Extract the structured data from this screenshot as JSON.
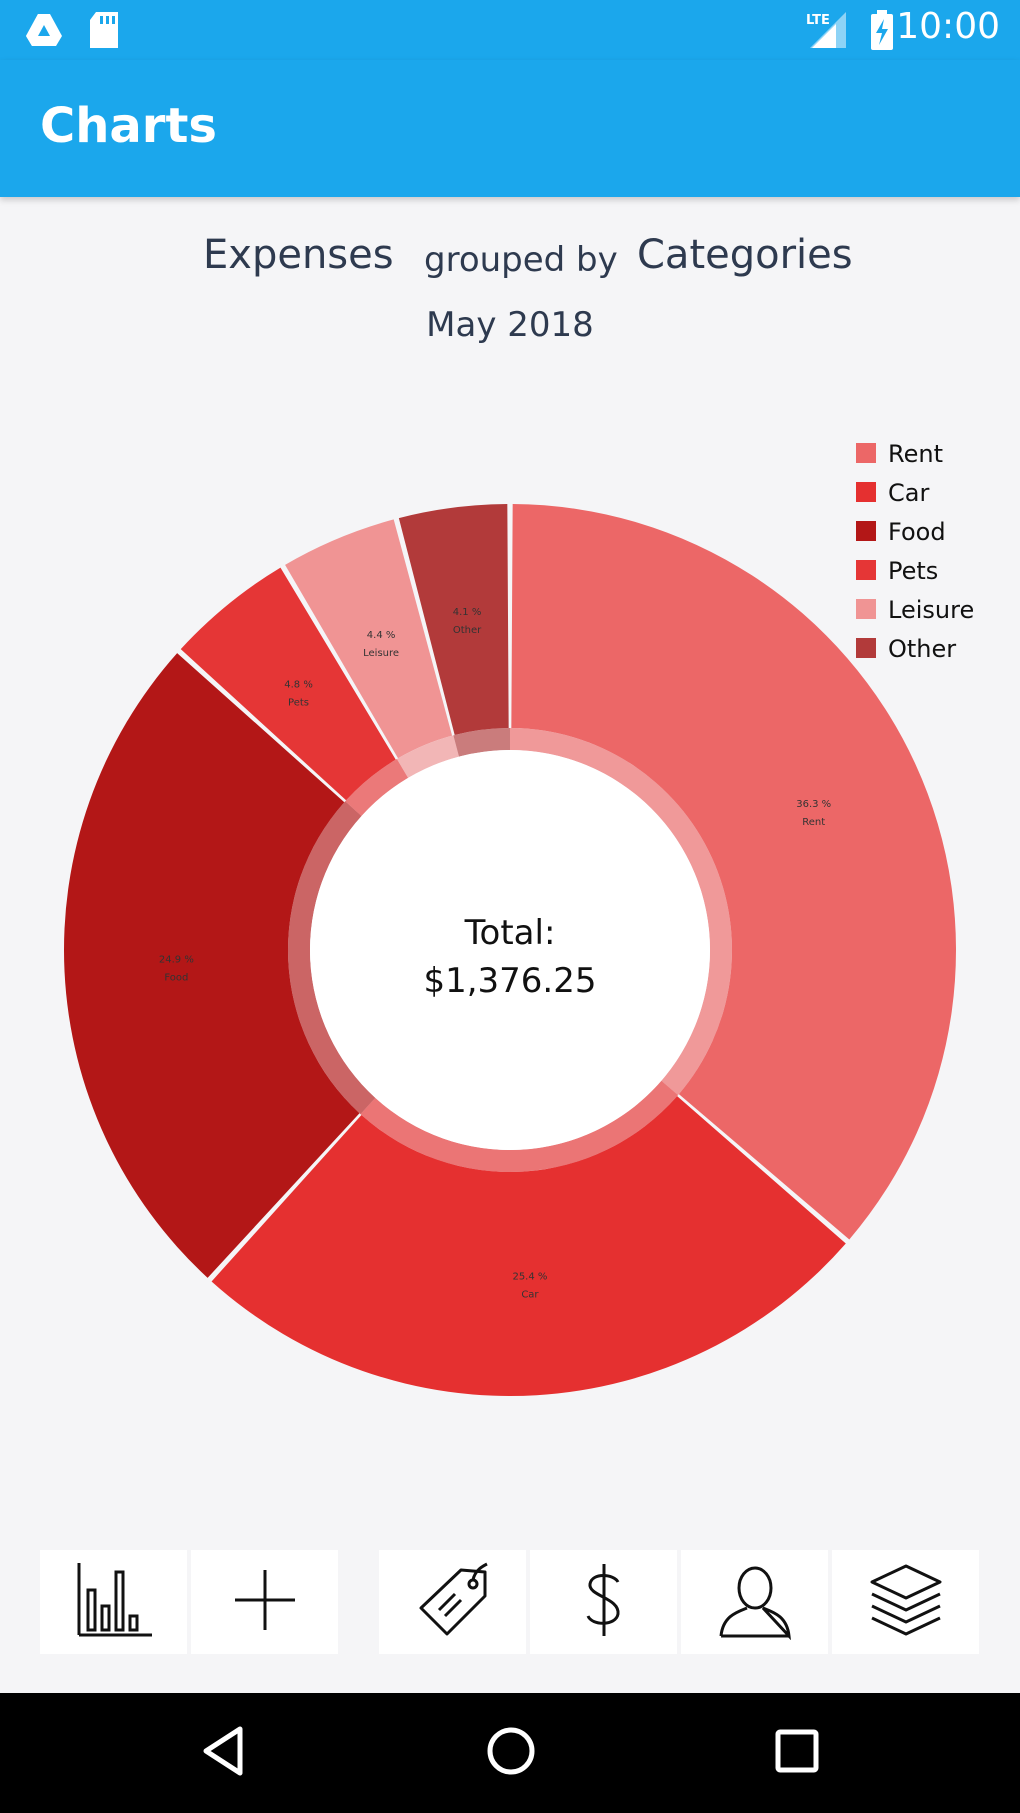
{
  "status_bar": {
    "time": "10:00",
    "left_icons": [
      "drive-icon",
      "sd-card-icon"
    ],
    "right_icons": [
      "lte-signal-icon",
      "battery-charging-icon"
    ],
    "network_label": "LTE"
  },
  "app_bar": {
    "title": "Charts",
    "color": "#1ba7ec"
  },
  "header": {
    "metric": "Expenses",
    "grouped_by": "grouped by",
    "dimension": "Categories",
    "period": "May 2018"
  },
  "chart_data": {
    "type": "pie",
    "donut": true,
    "categories": [
      "Rent",
      "Car",
      "Food",
      "Pets",
      "Leisure",
      "Other"
    ],
    "values": [
      36.3,
      25.4,
      24.9,
      4.8,
      4.4,
      4.1
    ],
    "value_labels": [
      "36.3 %",
      "25.4 %",
      "24.9 %",
      "4.8 %",
      "4.4 %",
      "4.1 %"
    ],
    "colors": [
      "#ec6767",
      "#e53030",
      "#b31717",
      "#e53636",
      "#f09494",
      "#b23a3a"
    ],
    "center_text": [
      "Total:",
      "$1,376.25"
    ],
    "legend_position": "top-right"
  },
  "bottom_nav": [
    {
      "icon": "bar-chart-icon"
    },
    {
      "icon": "plus-icon"
    },
    {
      "icon": "price-tag-icon"
    },
    {
      "icon": "dollar-icon"
    },
    {
      "icon": "user-icon"
    },
    {
      "icon": "layers-icon"
    }
  ],
  "system_nav": [
    "back-icon",
    "home-icon",
    "recents-icon"
  ]
}
